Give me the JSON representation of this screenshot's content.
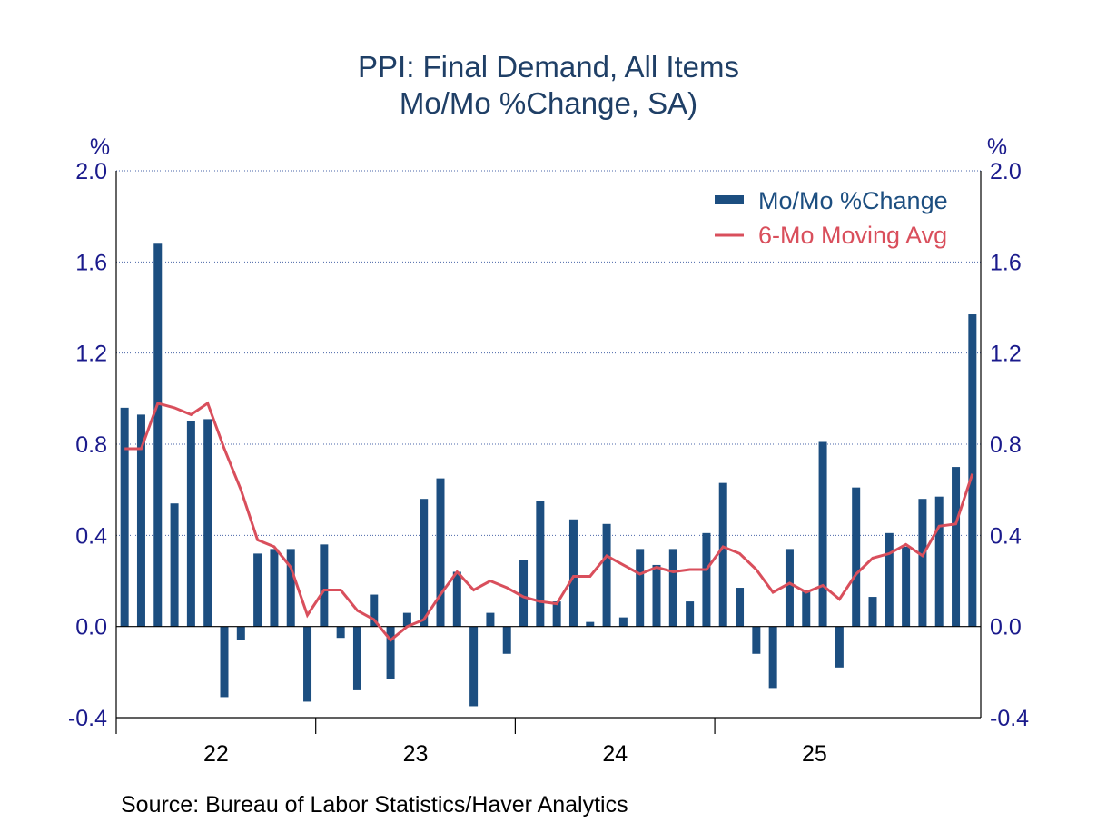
{
  "chart_data": {
    "type": "bar",
    "title": "PPI: Final Demand, All Items",
    "subtitle": "Mo/Mo %Change, SA)",
    "y_unit_left": "%",
    "y_unit_right": "%",
    "ylim": [
      -0.4,
      2.0
    ],
    "yticks": [
      "2.0",
      "1.6",
      "1.2",
      "0.8",
      "0.4",
      "0.0",
      "-0.4"
    ],
    "year_labels": [
      "22",
      "23",
      "24",
      "25"
    ],
    "grid": true,
    "legend_position": "top-right",
    "series": [
      {
        "name": "Mo/Mo %Change",
        "type": "bar",
        "color": "#1c4e80",
        "values": [
          0.96,
          0.93,
          1.68,
          0.54,
          0.9,
          0.91,
          -0.31,
          -0.06,
          0.32,
          0.34,
          0.34,
          -0.33,
          0.36,
          -0.05,
          -0.28,
          0.14,
          -0.23,
          0.06,
          0.56,
          0.65,
          0.24,
          -0.35,
          0.06,
          -0.12,
          0.29,
          0.55,
          0.11,
          0.47,
          0.02,
          0.45,
          0.04,
          0.34,
          0.27,
          0.34,
          0.11,
          0.41,
          0.63,
          0.17,
          -0.12,
          -0.27,
          0.34,
          0.16,
          0.81,
          -0.18,
          0.61,
          0.13,
          0.41,
          0.35,
          0.56,
          0.57,
          0.7,
          1.37
        ]
      },
      {
        "name": "6-Mo Moving Avg",
        "type": "line",
        "color": "#d94f5c",
        "values": [
          0.78,
          0.78,
          0.98,
          0.96,
          0.93,
          0.98,
          0.78,
          0.6,
          0.38,
          0.35,
          0.26,
          0.05,
          0.16,
          0.16,
          0.07,
          0.03,
          -0.06,
          0.0,
          0.03,
          0.14,
          0.24,
          0.16,
          0.2,
          0.17,
          0.13,
          0.11,
          0.1,
          0.22,
          0.22,
          0.31,
          0.27,
          0.23,
          0.26,
          0.24,
          0.25,
          0.25,
          0.35,
          0.32,
          0.25,
          0.15,
          0.19,
          0.15,
          0.18,
          0.12,
          0.23,
          0.3,
          0.32,
          0.36,
          0.31,
          0.44,
          0.45,
          0.67
        ]
      }
    ]
  },
  "source": "Source:  Bureau of Labor Statistics/Haver Analytics"
}
